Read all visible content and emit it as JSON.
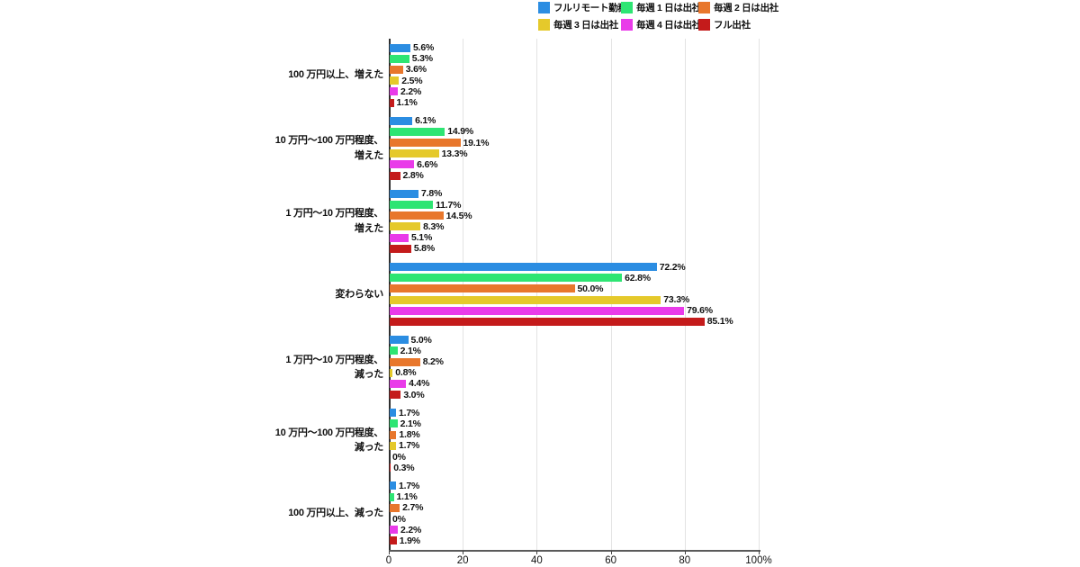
{
  "chart_data": {
    "type": "bar",
    "orientation": "horizontal",
    "title": "",
    "xlabel": "",
    "ylabel": "",
    "unit": "%",
    "xlim": [
      0,
      100
    ],
    "xticks": [
      0,
      20,
      40,
      60,
      80,
      100
    ],
    "xtick_labels": [
      "0",
      "20",
      "40",
      "60",
      "80",
      "100%"
    ],
    "grid": true,
    "legend_position": "top",
    "colors": {
      "axis": "#2f2f2f",
      "gridline": "#e3e3e3",
      "background": "#ffffff",
      "text": "#111111"
    },
    "categories": [
      {
        "label": "100万円以上、増えた",
        "lines": [
          "100 万円以上、増えた"
        ]
      },
      {
        "label": "10万円〜100万円程度、増えた",
        "lines": [
          "10 万円〜100 万円程度、",
          "増えた"
        ]
      },
      {
        "label": "1万円〜10万円程度、増えた",
        "lines": [
          "1 万円〜10 万円程度、",
          "増えた"
        ]
      },
      {
        "label": "変わらない",
        "lines": [
          "変わらない"
        ]
      },
      {
        "label": "1万円〜10万円程度、減った",
        "lines": [
          "1 万円〜10 万円程度、",
          "減った"
        ]
      },
      {
        "label": "10万円〜100万円程度、減った",
        "lines": [
          "10 万円〜100 万円程度、",
          "減った"
        ]
      },
      {
        "label": "100万円以上、減った",
        "lines": [
          "100 万円以上、減った"
        ]
      }
    ],
    "series": [
      {
        "name": "フルリモート勤務",
        "color": "#2b8de2",
        "values": [
          5.6,
          6.1,
          7.8,
          72.2,
          5.0,
          1.7,
          1.7
        ],
        "labels": [
          "5.6%",
          "6.1%",
          "7.8%",
          "72.2%",
          "5.0%",
          "1.7%",
          "1.7%"
        ]
      },
      {
        "name": "毎週 1 日は出社",
        "color": "#2ee573",
        "values": [
          5.3,
          14.9,
          11.7,
          62.8,
          2.1,
          2.1,
          1.1
        ],
        "labels": [
          "5.3%",
          "14.9%",
          "11.7%",
          "62.8%",
          "2.1%",
          "2.1%",
          "1.1%"
        ]
      },
      {
        "name": "毎週 2 日は出社",
        "color": "#e8772c",
        "values": [
          3.6,
          19.1,
          14.5,
          50.0,
          8.2,
          1.8,
          2.7
        ],
        "labels": [
          "3.6%",
          "19.1%",
          "14.5%",
          "50.0%",
          "8.2%",
          "1.8%",
          "2.7%"
        ]
      },
      {
        "name": "毎週 3 日は出社",
        "color": "#e5c92b",
        "values": [
          2.5,
          13.3,
          8.3,
          73.3,
          0.8,
          1.7,
          0
        ],
        "labels": [
          "2.5%",
          "13.3%",
          "8.3%",
          "73.3%",
          "0.8%",
          "1.7%",
          "0%"
        ]
      },
      {
        "name": "毎週 4 日は出社",
        "color": "#e93be9",
        "values": [
          2.2,
          6.6,
          5.1,
          79.6,
          4.4,
          0,
          2.2
        ],
        "labels": [
          "2.2%",
          "6.6%",
          "5.1%",
          "79.6%",
          "4.4%",
          "0%",
          "2.2%"
        ]
      },
      {
        "name": "フル出社",
        "color": "#c41b1b",
        "values": [
          1.1,
          2.8,
          5.8,
          85.1,
          3.0,
          0.3,
          1.9
        ],
        "labels": [
          "1.1%",
          "2.8%",
          "5.8%",
          "85.1%",
          "3.0%",
          "0.3%",
          "1.9%"
        ]
      }
    ]
  }
}
